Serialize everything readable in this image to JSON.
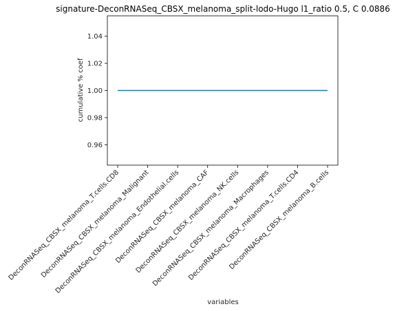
{
  "chart_data": {
    "type": "line",
    "title": "signature-DeconRNASeq_CBSX_melanoma_split-lodo-Hugo l1_ratio 0.5, C 0.0886",
    "xlabel": "variables",
    "ylabel": "cumulative % coef",
    "categories": [
      "DeconRNASeq_CBSX_melanoma_T.cells.CD8",
      "DeconRNASeq_CBSX_melanoma_Malignant",
      "DeconRNASeq_CBSX_melanoma_Endothelial.cells",
      "DeconRNASeq_CBSX_melanoma_CAF",
      "DeconRNASeq_CBSX_melanoma_NK.cells",
      "DeconRNASeq_CBSX_melanoma_Macrophages",
      "DeconRNASeq_CBSX_melanoma_T.cells.CD4",
      "DeconRNASeq_CBSX_melanoma_B.cells"
    ],
    "series": [
      {
        "values": [
          1.0,
          1.0,
          1.0,
          1.0,
          1.0,
          1.0,
          1.0,
          1.0
        ],
        "color": "#1f77b4"
      }
    ],
    "ylim": [
      0.945,
      1.055
    ],
    "yticks": [
      0.96,
      0.98,
      1.0,
      1.02,
      1.04
    ],
    "grid": false,
    "legend": "none"
  }
}
